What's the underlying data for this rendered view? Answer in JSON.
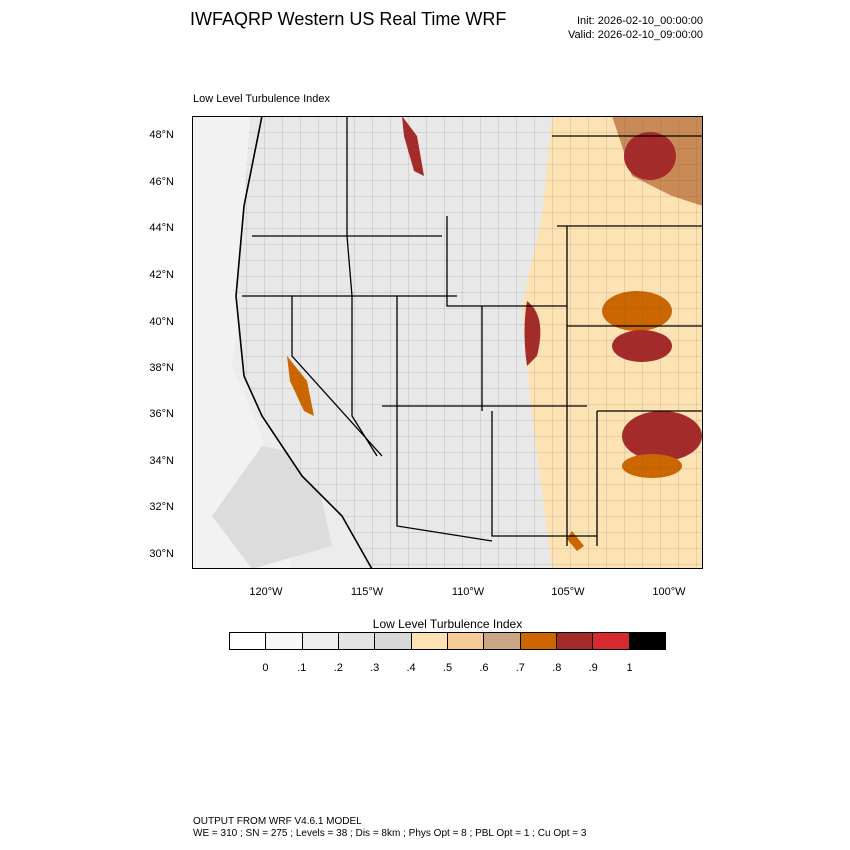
{
  "header": {
    "title": "IWFAQRP Western US Real Time WRF",
    "init": "Init: 2026-02-10_00:00:00",
    "valid": "Valid: 2026-02-10_09:00:00"
  },
  "map": {
    "subtitle": "Low Level Turbulence Index",
    "lat_labels": [
      "48°N",
      "46°N",
      "44°N",
      "42°N",
      "40°N",
      "38°N",
      "36°N",
      "34°N",
      "32°N",
      "30°N"
    ],
    "lon_labels": [
      "120°W",
      "115°W",
      "110°W",
      "105°W",
      "100°W"
    ]
  },
  "colorbar": {
    "title": "Low Level Turbulence Index",
    "labels": [
      "0",
      ".1",
      ".2",
      ".3",
      ".4",
      ".5",
      ".6",
      ".7",
      ".8",
      ".9",
      "1"
    ],
    "colors": [
      "#ffffff",
      "#f7f7f7",
      "#eeeeee",
      "#e3e3e3",
      "#d8d8d8",
      "#fde3b3",
      "#f3cc98",
      "#c9a784",
      "#cc6600",
      "#a52a2a",
      "#d42a30",
      "#000000"
    ]
  },
  "footer": {
    "line1": "OUTPUT FROM WRF V4.6.1 MODEL",
    "line2": "WE = 310 ; SN = 275 ; Levels = 38 ; Dis = 8km ; Phys Opt = 8 ; PBL Opt = 1 ; Cu Opt = 3"
  }
}
